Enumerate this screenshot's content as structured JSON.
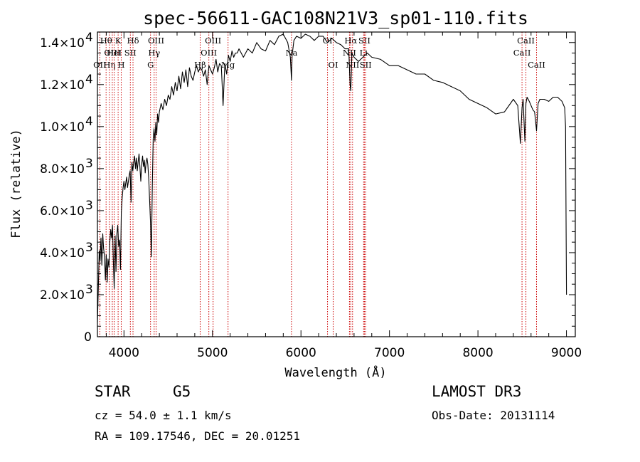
{
  "chart_data": {
    "type": "line",
    "title": "spec-56611-GAC108N21V3_sp01-110.fits",
    "xlabel": "Wavelength (Å)",
    "ylabel": "Flux (relative)",
    "xlim": [
      3700,
      9100
    ],
    "ylim": [
      0,
      14500
    ],
    "xticks": [
      {
        "value": 4000,
        "label": "4000"
      },
      {
        "value": 5000,
        "label": "5000"
      },
      {
        "value": 6000,
        "label": "6000"
      },
      {
        "value": 7000,
        "label": "7000"
      },
      {
        "value": 8000,
        "label": "8000"
      },
      {
        "value": 9000,
        "label": "9000"
      }
    ],
    "yticks": [
      {
        "value": 0,
        "mant": "0",
        "exp": ""
      },
      {
        "value": 2000,
        "mant": "2.0×10",
        "exp": "3"
      },
      {
        "value": 4000,
        "mant": "4.0×10",
        "exp": "3"
      },
      {
        "value": 6000,
        "mant": "6.0×10",
        "exp": "3"
      },
      {
        "value": 8000,
        "mant": "8.0×10",
        "exp": "3"
      },
      {
        "value": 10000,
        "mant": "1.0×10",
        "exp": "4"
      },
      {
        "value": 12000,
        "mant": "1.2×10",
        "exp": "4"
      },
      {
        "value": 14000,
        "mant": "1.4×10",
        "exp": "4"
      }
    ],
    "series": [
      {
        "name": "spectrum",
        "x": [
          3700,
          3710,
          3720,
          3730,
          3740,
          3750,
          3760,
          3770,
          3780,
          3790,
          3800,
          3810,
          3820,
          3830,
          3840,
          3850,
          3860,
          3870,
          3880,
          3890,
          3900,
          3910,
          3920,
          3930,
          3940,
          3950,
          3960,
          3970,
          3980,
          3990,
          4000,
          4010,
          4020,
          4030,
          4040,
          4050,
          4060,
          4070,
          4080,
          4090,
          4100,
          4110,
          4120,
          4130,
          4140,
          4150,
          4160,
          4170,
          4180,
          4190,
          4200,
          4210,
          4220,
          4230,
          4240,
          4250,
          4260,
          4270,
          4280,
          4290,
          4300,
          4310,
          4320,
          4330,
          4340,
          4350,
          4360,
          4370,
          4380,
          4390,
          4400,
          4420,
          4440,
          4460,
          4480,
          4500,
          4520,
          4540,
          4560,
          4580,
          4600,
          4620,
          4640,
          4660,
          4680,
          4700,
          4720,
          4740,
          4760,
          4780,
          4800,
          4820,
          4840,
          4860,
          4880,
          4900,
          4920,
          4940,
          4960,
          4980,
          5000,
          5020,
          5040,
          5060,
          5080,
          5100,
          5120,
          5140,
          5160,
          5170,
          5180,
          5200,
          5220,
          5240,
          5260,
          5280,
          5300,
          5350,
          5400,
          5450,
          5500,
          5550,
          5600,
          5650,
          5700,
          5750,
          5800,
          5850,
          5880,
          5893,
          5900,
          5920,
          5950,
          6000,
          6050,
          6100,
          6150,
          6200,
          6250,
          6300,
          6350,
          6400,
          6450,
          6500,
          6540,
          6555,
          6563,
          6575,
          6600,
          6650,
          6700,
          6750,
          6800,
          6900,
          7000,
          7100,
          7200,
          7300,
          7400,
          7500,
          7600,
          7700,
          7800,
          7900,
          8000,
          8100,
          8200,
          8300,
          8400,
          8450,
          8480,
          8498,
          8510,
          8530,
          8542,
          8555,
          8580,
          8620,
          8640,
          8662,
          8680,
          8700,
          8750,
          8800,
          8850,
          8900,
          8950,
          8980,
          8990,
          9000
        ],
        "y": [
          700,
          2200,
          4100,
          3600,
          4700,
          3400,
          4900,
          4200,
          3800,
          2700,
          3900,
          2600,
          3700,
          3300,
          4500,
          5100,
          4700,
          5300,
          3600,
          2300,
          4800,
          3100,
          4900,
          5300,
          4300,
          4600,
          3200,
          5900,
          6600,
          7100,
          7400,
          7000,
          7300,
          7600,
          7100,
          7400,
          7700,
          7900,
          6400,
          8300,
          7900,
          8300,
          8600,
          8000,
          8500,
          7900,
          8300,
          8700,
          8100,
          7400,
          8200,
          8600,
          8100,
          8400,
          7800,
          8300,
          8500,
          8200,
          7500,
          6500,
          5400,
          3800,
          7200,
          9400,
          9900,
          9300,
          10200,
          9600,
          10600,
          10200,
          10700,
          11100,
          10800,
          11300,
          11000,
          11500,
          11300,
          11900,
          11500,
          12100,
          11700,
          12400,
          11800,
          12600,
          12100,
          12700,
          11900,
          12800,
          12400,
          12200,
          12600,
          12900,
          12600,
          12800,
          12700,
          12400,
          12700,
          12000,
          12900,
          12700,
          12500,
          12800,
          13200,
          12600,
          13000,
          12900,
          11000,
          13000,
          12500,
          12900,
          13400,
          13100,
          13600,
          13300,
          13500,
          13500,
          13700,
          13300,
          13700,
          13500,
          14000,
          13700,
          13600,
          14100,
          13900,
          14300,
          14400,
          14000,
          13300,
          12200,
          13400,
          14100,
          14300,
          14200,
          14400,
          14300,
          14100,
          14300,
          14300,
          14000,
          14200,
          14000,
          13900,
          13700,
          13700,
          12000,
          11700,
          13500,
          13300,
          13100,
          13300,
          13500,
          13300,
          13200,
          12900,
          12900,
          12700,
          12500,
          12500,
          12200,
          12100,
          11900,
          11700,
          11300,
          11100,
          10900,
          10600,
          10700,
          11300,
          11000,
          9200,
          10900,
          11300,
          9300,
          11100,
          11400,
          11200,
          10800,
          10700,
          9800,
          11100,
          11300,
          11300,
          11200,
          11400,
          11400,
          11200,
          10900,
          10000,
          2000
        ]
      }
    ],
    "lines": [
      {
        "name": "OII_3727",
        "x": 3727,
        "labels": [
          {
            "text": "OII",
            "row": 2
          }
        ]
      },
      {
        "name": "Htheta",
        "x": 3798,
        "labels": [
          {
            "text": "Hθ",
            "row": 0
          }
        ]
      },
      {
        "name": "Heta",
        "x": 3835,
        "labels": [
          {
            "text": "Hη",
            "row": 2
          }
        ]
      },
      {
        "name": "OIII_3868",
        "x": 3868,
        "labels": [
          {
            "text": "OIII",
            "row": 1
          }
        ]
      },
      {
        "name": "HeI_3889",
        "x": 3889,
        "labels": [
          {
            "text": "HeI",
            "row": 1
          }
        ]
      },
      {
        "name": "CaII_K",
        "x": 3934,
        "labels": [
          {
            "text": "K",
            "row": 0
          }
        ]
      },
      {
        "name": "CaII_H",
        "x": 3969,
        "labels": [
          {
            "text": "H",
            "row": 2
          }
        ]
      },
      {
        "name": "SII_4072",
        "x": 4072,
        "labels": [
          {
            "text": "SII",
            "row": 1
          }
        ]
      },
      {
        "name": "Hdelta",
        "x": 4102,
        "labels": [
          {
            "text": "Hδ",
            "row": 0
          }
        ]
      },
      {
        "name": "G_band",
        "x": 4300,
        "labels": [
          {
            "text": "G",
            "row": 2
          }
        ]
      },
      {
        "name": "Hgamma",
        "x": 4341,
        "labels": [
          {
            "text": "Hγ",
            "row": 1
          }
        ]
      },
      {
        "name": "OIII_4363",
        "x": 4363,
        "labels": [
          {
            "text": "OIII",
            "row": 0
          }
        ]
      },
      {
        "name": "Hbeta",
        "x": 4861,
        "labels": [
          {
            "text": "Hβ",
            "row": 2
          }
        ]
      },
      {
        "name": "OIII_4959",
        "x": 4959,
        "labels": [
          {
            "text": "OIII",
            "row": 1
          }
        ]
      },
      {
        "name": "OIII_5007",
        "x": 5007,
        "labels": [
          {
            "text": "OIII",
            "row": 0
          }
        ]
      },
      {
        "name": "Mg",
        "x": 5176,
        "labels": [
          {
            "text": "Mg",
            "row": 2
          }
        ]
      },
      {
        "name": "Na",
        "x": 5893,
        "labels": [
          {
            "text": "Na",
            "row": 1
          }
        ]
      },
      {
        "name": "OI_6300",
        "x": 6300,
        "labels": [
          {
            "text": "OI",
            "row": 0
          }
        ]
      },
      {
        "name": "OI_6364",
        "x": 6364,
        "labels": [
          {
            "text": "OI",
            "row": 2
          }
        ]
      },
      {
        "name": "NII_6548",
        "x": 6548,
        "labels": [
          {
            "text": "NII",
            "row": 1
          }
        ]
      },
      {
        "name": "Halpha",
        "x": 6563,
        "labels": [
          {
            "text": "Hα",
            "row": 0
          }
        ]
      },
      {
        "name": "NII_6583",
        "x": 6583,
        "labels": [
          {
            "text": "NII",
            "row": 2
          }
        ]
      },
      {
        "name": "Li",
        "x": 6708,
        "labels": [
          {
            "text": "Li",
            "row": 1
          }
        ]
      },
      {
        "name": "SII_6717",
        "x": 6717,
        "labels": [
          {
            "text": "SII",
            "row": 0
          }
        ]
      },
      {
        "name": "SII_6731",
        "x": 6731,
        "labels": [
          {
            "text": "SII",
            "row": 2
          }
        ]
      },
      {
        "name": "CaII_8498",
        "x": 8498,
        "labels": [
          {
            "text": "CaII",
            "row": 1
          }
        ]
      },
      {
        "name": "CaII_8542",
        "x": 8542,
        "labels": [
          {
            "text": "CaII",
            "row": 0
          }
        ]
      },
      {
        "name": "CaII_8662",
        "x": 8662,
        "labels": [
          {
            "text": "CaII",
            "row": 2
          }
        ]
      }
    ]
  },
  "info": {
    "object_class": "STAR",
    "subclass": "G5",
    "survey": "LAMOST DR3",
    "cz": "cz = 54.0 ± 1.1 km/s",
    "obs_date": "Obs-Date: 20131114",
    "coords": "RA = 109.17546, DEC =  20.01251"
  },
  "colors": {
    "spectrum": "#000000",
    "line_markers": "#cc0000",
    "axes": "#000000"
  }
}
